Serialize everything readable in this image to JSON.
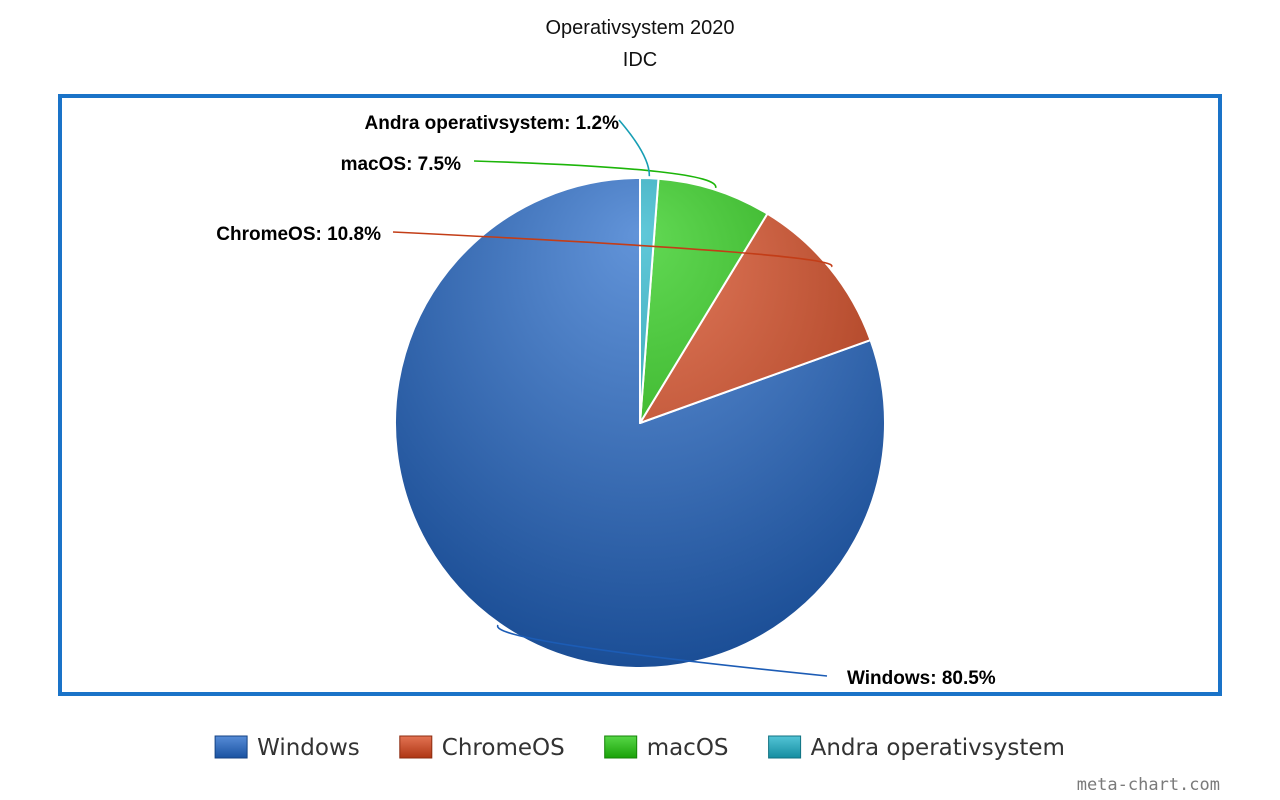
{
  "chart_data": {
    "type": "pie",
    "title": "Operativsystem 2020",
    "subtitle": "IDC",
    "slices": [
      {
        "label": "Windows",
        "value": 80.5,
        "display": "Windows: 80.5%",
        "color": "#1f66c9"
      },
      {
        "label": "ChromeOS",
        "value": 10.8,
        "display": "ChromeOS: 10.8%",
        "color": "#d94419"
      },
      {
        "label": "macOS",
        "value": 7.5,
        "display": "macOS: 7.5%",
        "color": "#1fc90a"
      },
      {
        "label": "Andra operativsystem",
        "value": 1.2,
        "display": "Andra operativsystem: 1.2%",
        "color": "#1ab0c8"
      }
    ],
    "legend": {
      "position": "bottom",
      "items": [
        "Windows",
        "ChromeOS",
        "macOS",
        "Andra operativsystem"
      ]
    },
    "frame_color": "#1a73c8"
  },
  "credit": "meta-chart.com"
}
